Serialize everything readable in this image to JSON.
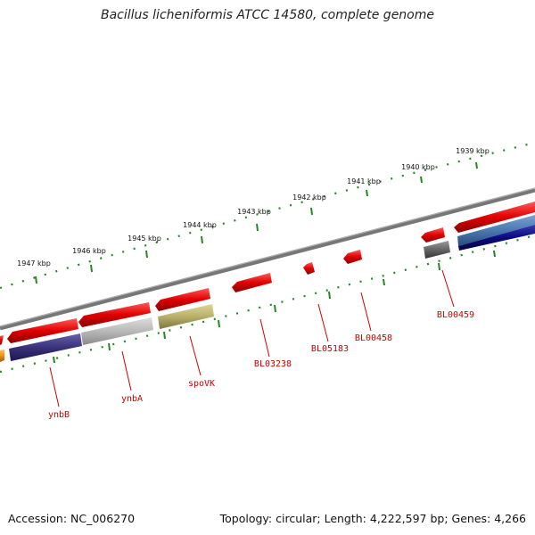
{
  "title": "Bacillus licheniformis ATCC 14580, complete genome",
  "footer": {
    "accession": "Accession: NC_006270",
    "topology": "Topology: circular; Length: 4,222,597 bp; Genes: 4,266"
  },
  "ticks": [
    {
      "label": "1939 kbp"
    },
    {
      "label": "1940 kbp"
    },
    {
      "label": "1941 kbp"
    },
    {
      "label": "1942 kbp"
    },
    {
      "label": "1943 kbp"
    },
    {
      "label": "1944 kbp"
    },
    {
      "label": "1945 kbp"
    },
    {
      "label": "1946 kbp"
    },
    {
      "label": "1947 kbp"
    }
  ],
  "gene_labels": {
    "ynbB": "ynbB",
    "ynbA": "ynbA",
    "spoVK": "spoVK",
    "BL03238": "BL03238",
    "BL05183": "BL05183",
    "BL00458": "BL00458",
    "BL00459": "BL00459"
  },
  "colors": {
    "backbone": "#777777",
    "forward_gene": "#e00000",
    "reverse_gene": "#3a327a",
    "ynbA_gene": "#bbbbbb",
    "spoVK_gene": "#b8b06a",
    "blue_gene": "#4a78b0",
    "navy_gene": "#0a0a80",
    "orange_gene": "#f0900a",
    "tick": "#228822",
    "label": "#cc0000"
  }
}
